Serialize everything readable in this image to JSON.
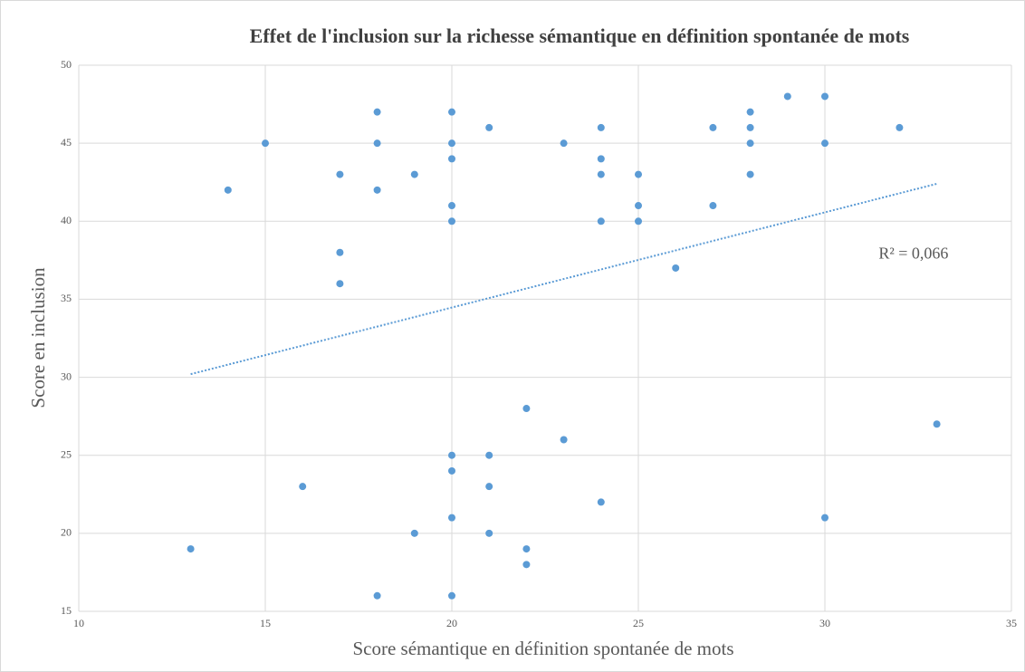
{
  "chart_data": {
    "type": "scatter",
    "title": "Effet de l'inclusion sur la richesse sémantique en définition spontanée de mots",
    "x_label": "Score sémantique en définition spontanée de mots",
    "y_label": "Score en inclusion",
    "annotation": "R² = 0,066",
    "color": "#5b9bd5",
    "grid": true,
    "xlim": [
      10,
      35
    ],
    "xticks": [
      10,
      15,
      20,
      25,
      30,
      35
    ],
    "ylim": [
      15,
      50
    ],
    "yticks": [
      15,
      20,
      25,
      30,
      35,
      40,
      45,
      50
    ],
    "x": [
      13,
      14,
      15,
      16,
      17,
      17,
      17,
      18,
      18,
      18,
      18,
      19,
      19,
      20,
      20,
      20,
      20,
      20,
      20,
      20,
      20,
      20,
      21,
      21,
      21,
      21,
      22,
      22,
      22,
      23,
      23,
      24,
      24,
      24,
      24,
      24,
      25,
      25,
      25,
      26,
      27,
      27,
      28,
      28,
      28,
      28,
      29,
      30,
      30,
      30,
      32,
      33
    ],
    "values": [
      19,
      42,
      45,
      23,
      43,
      38,
      36,
      47,
      45,
      42,
      16,
      43,
      20,
      47,
      45,
      44,
      41,
      40,
      25,
      24,
      21,
      16,
      46,
      25,
      23,
      20,
      28,
      19,
      18,
      45,
      26,
      46,
      44,
      43,
      40,
      22,
      43,
      41,
      40,
      37,
      46,
      41,
      47,
      46,
      45,
      43,
      48,
      48,
      45,
      21,
      46,
      27
    ],
    "trendline": {
      "x": [
        13,
        33
      ],
      "values": [
        30.2,
        42.4
      ]
    }
  }
}
